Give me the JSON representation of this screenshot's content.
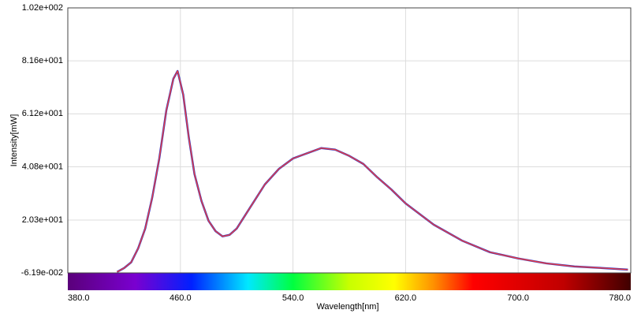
{
  "chart_data": {
    "type": "line",
    "x_label": "Wavelength[nm]",
    "y_label": "Intensity[mW]",
    "x": [
      415,
      420,
      425,
      430,
      435,
      440,
      445,
      450,
      455,
      458,
      462,
      466,
      470,
      475,
      480,
      485,
      490,
      495,
      500,
      510,
      520,
      530,
      540,
      560,
      570,
      580,
      590,
      600,
      610,
      620,
      640,
      660,
      680,
      700,
      720,
      740,
      760,
      778
    ],
    "series": [
      {
        "color": "#f0403c",
        "values": [
          0.3,
          1.8,
          4,
          9.4,
          17,
          29,
          44,
          62.5,
          74.7,
          77.7,
          68.6,
          52,
          38,
          27.6,
          20,
          16,
          14,
          14.6,
          17,
          25.5,
          34,
          40,
          44,
          48,
          47.4,
          45,
          41.9,
          36.7,
          32,
          26.7,
          18.5,
          12.4,
          7.9,
          5.5,
          3.6,
          2.4,
          1.8,
          1.2
        ]
      }
    ],
    "xlim": [
      380,
      780
    ],
    "xticks": [
      {
        "value": 380,
        "label": "380.0"
      },
      {
        "value": 460,
        "label": "460.0"
      },
      {
        "value": 540,
        "label": "540.0"
      },
      {
        "value": 620,
        "label": "620.0"
      },
      {
        "value": 700,
        "label": "700.0"
      },
      {
        "value": 780,
        "label": "780.0"
      }
    ],
    "ylim": [
      -0.0619,
      102
    ],
    "yticks": [
      {
        "value": -0.0619,
        "label": "-6.19e-002"
      },
      {
        "value": 20.3,
        "label": "2.03e+001"
      },
      {
        "value": 40.8,
        "label": "4.08e+001"
      },
      {
        "value": 61.2,
        "label": "6.12e+001"
      },
      {
        "value": 81.6,
        "label": "8.16e+001"
      },
      {
        "value": 102,
        "label": "1.02e+002"
      }
    ],
    "grid": true
  }
}
